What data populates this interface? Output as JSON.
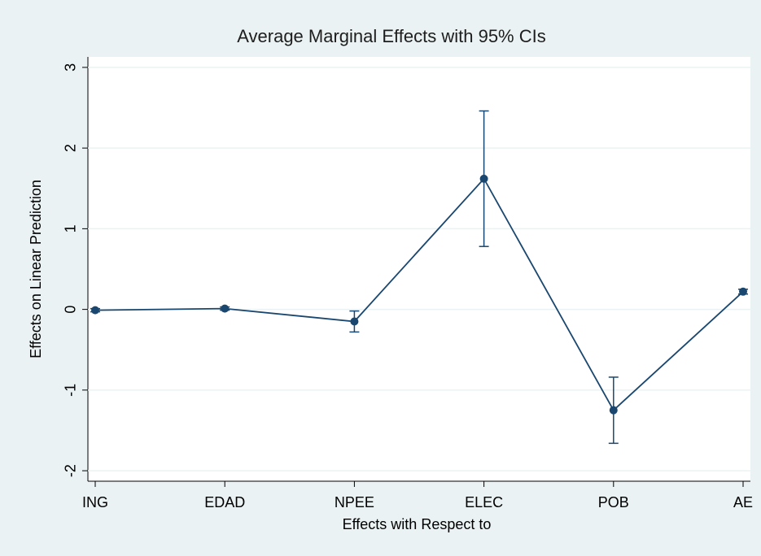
{
  "chart_data": {
    "type": "line_errorbar",
    "title": "Average Marginal Effects with 95% CIs",
    "x_label": "Effects with Respect to",
    "y_label": "Effects on Linear Prediction",
    "categories": [
      "ING",
      "EDAD",
      "NPEE",
      "ELEC",
      "POB",
      "AE"
    ],
    "values": [
      -0.01,
      0.01,
      -0.15,
      1.62,
      -1.25,
      0.22
    ],
    "ci_low": [
      -0.03,
      -0.01,
      -0.28,
      0.78,
      -1.66,
      0.19
    ],
    "ci_high": [
      0.01,
      0.03,
      -0.02,
      2.46,
      -0.84,
      0.25
    ],
    "color": "#1a476f",
    "ylim": [
      -2.13,
      3.13
    ],
    "yticks": [
      -2,
      -1,
      0,
      1,
      2,
      3
    ],
    "grid": true
  }
}
